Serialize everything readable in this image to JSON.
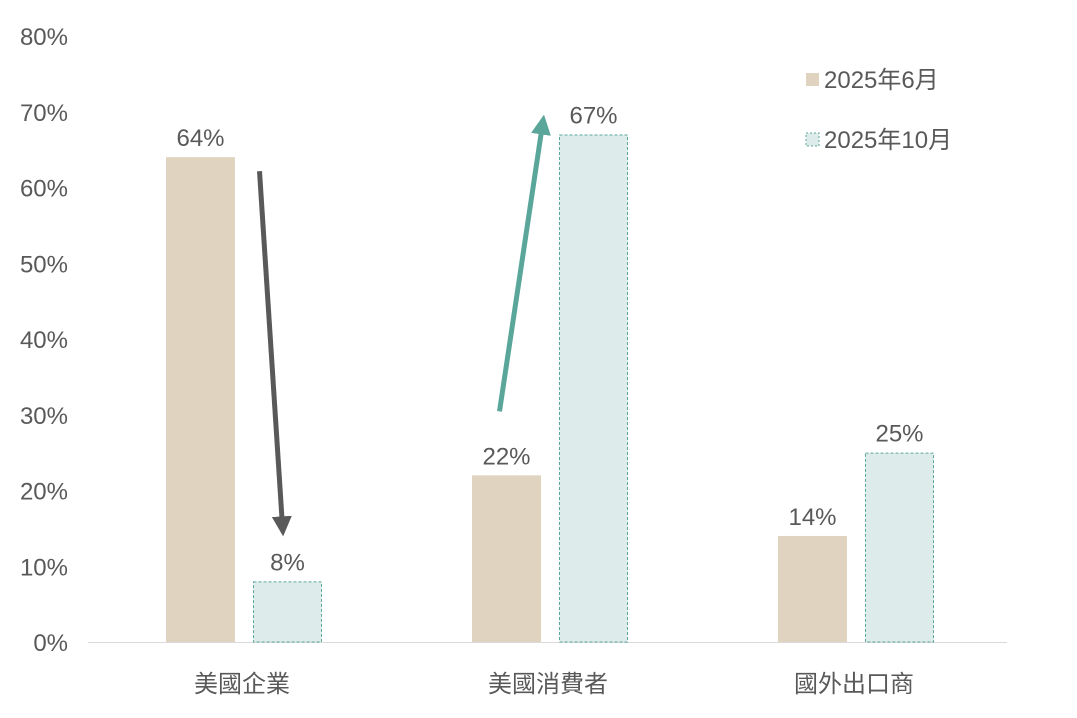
{
  "chart_data": {
    "type": "bar",
    "categories": [
      "美國企業",
      "美國消費者",
      "國外出口商"
    ],
    "series": [
      {
        "name": "2025年6月",
        "values": [
          64,
          22,
          14
        ],
        "color": "#e0d3bf",
        "style": "solid"
      },
      {
        "name": "2025年10月",
        "values": [
          8,
          67,
          25
        ],
        "color": "#ddecea",
        "border": "#5ba69a",
        "style": "dashed"
      }
    ],
    "data_labels": [
      [
        "64%",
        "22%",
        "14%"
      ],
      [
        "8%",
        "67%",
        "25%"
      ]
    ],
    "ylim": [
      0,
      80
    ],
    "yticks": [
      "0%",
      "10%",
      "20%",
      "30%",
      "40%",
      "50%",
      "60%",
      "70%",
      "80%"
    ],
    "ytick_values": [
      0,
      10,
      20,
      30,
      40,
      50,
      60,
      70,
      80
    ],
    "grid": false,
    "legend_position": "top-right",
    "arrows": [
      {
        "category": "美國企業",
        "direction": "down",
        "color": "#595959"
      },
      {
        "category": "美國消費者",
        "direction": "up",
        "color": "#5ba69a"
      }
    ]
  }
}
